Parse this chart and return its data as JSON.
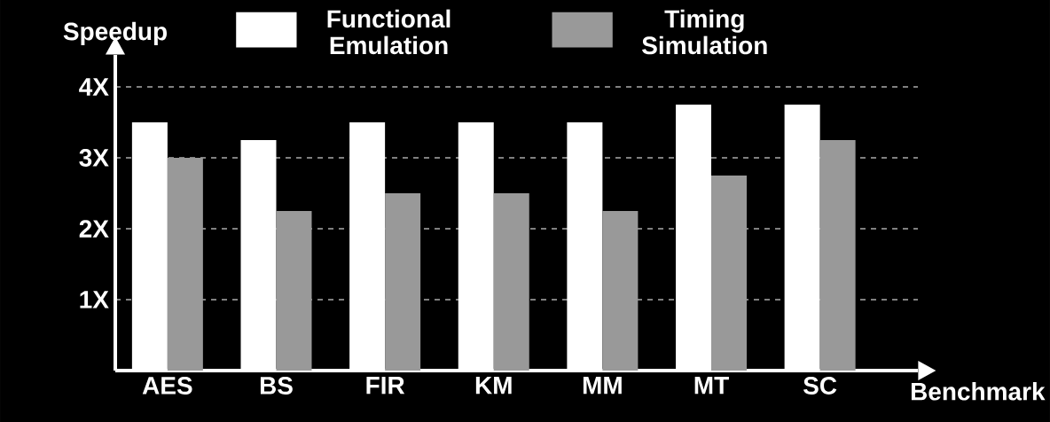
{
  "chart_data": {
    "type": "bar",
    "xlabel": "Benchmark",
    "ylabel": "Speedup",
    "categories": [
      "AES",
      "BS",
      "FIR",
      "KM",
      "MM",
      "MT",
      "SC"
    ],
    "series": [
      {
        "name": "Functional Emulation",
        "color": "#ffffff",
        "values": [
          3.5,
          3.25,
          3.5,
          3.5,
          3.5,
          3.75,
          3.75
        ]
      },
      {
        "name": "Timing Simulation",
        "color": "#999999",
        "values": [
          3.0,
          2.25,
          2.5,
          2.5,
          2.25,
          2.75,
          3.25
        ]
      }
    ],
    "ylim": [
      0,
      4.45
    ],
    "yticks": [
      {
        "value": 1,
        "label": "1X"
      },
      {
        "value": 2,
        "label": "2X"
      },
      {
        "value": 3,
        "label": "3X"
      },
      {
        "value": 4,
        "label": "4X"
      }
    ],
    "grid": "y",
    "legend": "top"
  }
}
